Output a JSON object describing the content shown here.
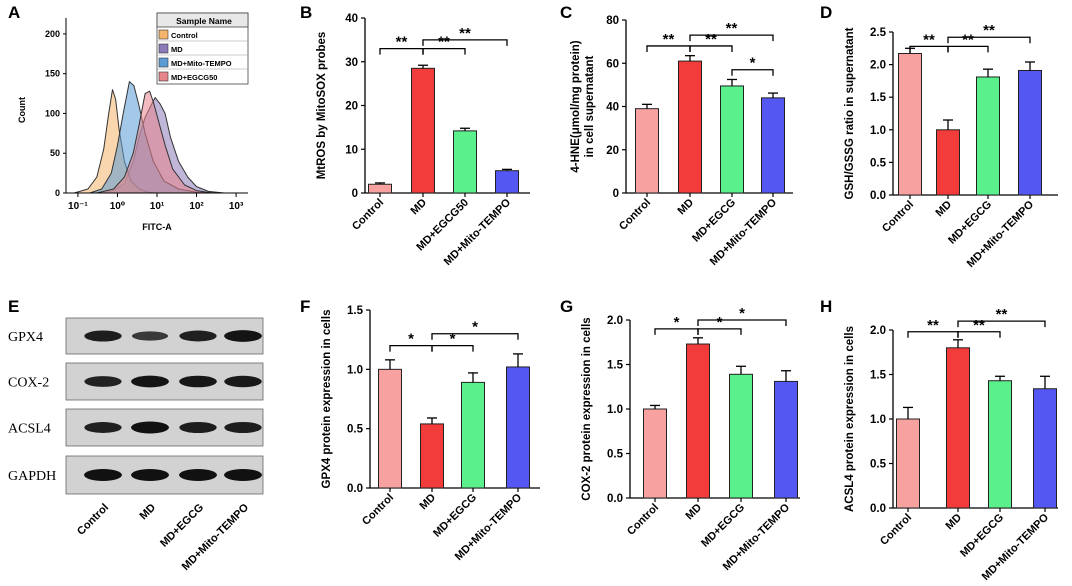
{
  "figure": {
    "panel_letters": [
      "A",
      "B",
      "C",
      "D",
      "E",
      "F",
      "G",
      "H"
    ]
  },
  "chart_data": [
    {
      "panel": "A",
      "type": "area",
      "subtype": "flow-cytometry-histogram",
      "xlabel": "FITC-A",
      "ylabel": "Count",
      "xscale": "log",
      "xlim": [
        0.05,
        2000
      ],
      "ylim": [
        0,
        220
      ],
      "xtick_labels": [
        "10⁻¹",
        "10⁰",
        "10¹",
        "10²",
        "10³"
      ],
      "ytick_labels": [
        "0",
        "50",
        "100",
        "150",
        "200"
      ],
      "yticks": [
        0,
        50,
        100,
        150,
        200
      ],
      "legend_title": "Sample Name",
      "legend_position": "top-right",
      "series": [
        {
          "name": "Control",
          "color": "#f5b46c",
          "x": [
            0.08,
            0.18,
            0.3,
            0.45,
            0.6,
            0.75,
            0.9,
            1.1,
            1.5,
            2.2,
            3.5,
            6,
            10
          ],
          "y": [
            0,
            5,
            20,
            55,
            100,
            130,
            118,
            80,
            40,
            15,
            5,
            1,
            0
          ]
        },
        {
          "name": "MD",
          "color": "#8c7ab8",
          "x": [
            0.4,
            0.8,
            1.5,
            2.5,
            3.5,
            5,
            7,
            9,
            12,
            16,
            22,
            35,
            60,
            100,
            200,
            500
          ],
          "y": [
            0,
            3,
            12,
            40,
            70,
            95,
            110,
            120,
            112,
            100,
            70,
            40,
            20,
            8,
            2,
            0
          ]
        },
        {
          "name": "MD+Mito-TEMPO",
          "color": "#5a9bd4",
          "x": [
            0.2,
            0.4,
            0.7,
            1.0,
            1.4,
            2.0,
            2.6,
            3.5,
            5,
            8,
            15,
            35,
            100,
            300
          ],
          "y": [
            0,
            5,
            25,
            60,
            100,
            140,
            135,
            110,
            75,
            40,
            15,
            5,
            1,
            0
          ]
        },
        {
          "name": "MD+EGCG50",
          "color": "#e8848c",
          "x": [
            0.3,
            0.8,
            1.5,
            2.5,
            3.5,
            5,
            6.5,
            8,
            11,
            16,
            25,
            50,
            100,
            250
          ],
          "y": [
            0,
            5,
            20,
            50,
            85,
            125,
            128,
            115,
            90,
            60,
            30,
            10,
            3,
            0
          ]
        }
      ]
    },
    {
      "panel": "B",
      "type": "bar",
      "ylabel": "MtROS by MitoSOX probes",
      "ylim": [
        0,
        40
      ],
      "yticks": [
        0,
        10,
        20,
        30,
        40
      ],
      "categories": [
        "Control",
        "MD",
        "MD+EGCG50",
        "MD+Mito-TEMPO"
      ],
      "values": [
        2.0,
        28.5,
        14.2,
        5.1
      ],
      "errors": [
        0.3,
        0.7,
        0.6,
        0.3
      ],
      "colors": [
        "#f7a1a1",
        "#f23b3b",
        "#5af08c",
        "#5557f2"
      ],
      "significance": [
        {
          "from": 0,
          "to": 1,
          "label": "**",
          "y": 33
        },
        {
          "from": 1,
          "to": 2,
          "label": "**",
          "y": 33
        },
        {
          "from": 1,
          "to": 3,
          "label": "**",
          "y": 35
        }
      ]
    },
    {
      "panel": "C",
      "type": "bar",
      "ylabel": "4-HNE(μmol/mg protein) in cell supernatant",
      "ylabel_lines": [
        "4-HNE(μmol/mg protein)",
        "in cell supernatant"
      ],
      "ylim": [
        0,
        80
      ],
      "yticks": [
        0,
        20,
        40,
        60,
        80
      ],
      "categories": [
        "Control",
        "MD",
        "MD+EGCG",
        "MD+Mito-TEMPO"
      ],
      "values": [
        39,
        61,
        49.5,
        44
      ],
      "errors": [
        2,
        2.5,
        3,
        2.2
      ],
      "colors": [
        "#f7a1a1",
        "#f23b3b",
        "#5af08c",
        "#5557f2"
      ],
      "significance": [
        {
          "from": 0,
          "to": 1,
          "label": "**",
          "y": 68
        },
        {
          "from": 1,
          "to": 2,
          "label": "**",
          "y": 68
        },
        {
          "from": 1,
          "to": 3,
          "label": "**",
          "y": 73
        },
        {
          "from": 2,
          "to": 3,
          "label": "*",
          "y": 57
        }
      ]
    },
    {
      "panel": "D",
      "type": "bar",
      "ylabel": "GSH/GSSG ratio in supernatant",
      "ylim": [
        0,
        2.5
      ],
      "yticks": [
        0.0,
        0.5,
        1.0,
        1.5,
        2.0,
        2.5
      ],
      "categories": [
        "Control",
        "MD",
        "MD+EGCG",
        "MD+Mito-TEMPO"
      ],
      "values": [
        2.17,
        1.0,
        1.81,
        1.91
      ],
      "errors": [
        0.08,
        0.15,
        0.12,
        0.13
      ],
      "colors": [
        "#f7a1a1",
        "#f23b3b",
        "#5af08c",
        "#5557f2"
      ],
      "significance": [
        {
          "from": 0,
          "to": 1,
          "label": "**",
          "y": 2.28
        },
        {
          "from": 1,
          "to": 2,
          "label": "**",
          "y": 2.28
        },
        {
          "from": 1,
          "to": 3,
          "label": "**",
          "y": 2.42
        }
      ]
    },
    {
      "panel": "E",
      "type": "western-blot",
      "rows": [
        "GPX4",
        "COX-2",
        "ACSL4",
        "GAPDH"
      ],
      "lanes": [
        "Control",
        "MD",
        "MD+EGCG",
        "MD+Mito-TEMPO"
      ],
      "band_intensity": [
        [
          0.85,
          0.55,
          0.82,
          0.95
        ],
        [
          0.8,
          0.95,
          0.92,
          0.9
        ],
        [
          0.82,
          0.98,
          0.85,
          0.85
        ],
        [
          0.98,
          0.98,
          0.98,
          0.98
        ]
      ]
    },
    {
      "panel": "F",
      "type": "bar",
      "ylabel": "GPX4 protein expression in cells",
      "ylim": [
        0,
        1.5
      ],
      "yticks": [
        0.0,
        0.5,
        1.0,
        1.5
      ],
      "categories": [
        "Control",
        "MD",
        "MD+EGCG",
        "MD+Mito-TEMPO"
      ],
      "values": [
        1.0,
        0.54,
        0.89,
        1.02
      ],
      "errors": [
        0.08,
        0.05,
        0.08,
        0.11
      ],
      "colors": [
        "#f7a1a1",
        "#f23b3b",
        "#5af08c",
        "#5557f2"
      ],
      "significance": [
        {
          "from": 0,
          "to": 1,
          "label": "*",
          "y": 1.2
        },
        {
          "from": 1,
          "to": 2,
          "label": "*",
          "y": 1.2
        },
        {
          "from": 1,
          "to": 3,
          "label": "*",
          "y": 1.3
        }
      ]
    },
    {
      "panel": "G",
      "type": "bar",
      "ylabel": "COX-2 protein expression in cells",
      "ylim": [
        0,
        2.0
      ],
      "yticks": [
        0.0,
        0.5,
        1.0,
        1.5,
        2.0
      ],
      "categories": [
        "Control",
        "MD",
        "MD+EGCG",
        "MD+Mito-TEMPO"
      ],
      "values": [
        1.0,
        1.73,
        1.39,
        1.31
      ],
      "errors": [
        0.04,
        0.07,
        0.09,
        0.12
      ],
      "colors": [
        "#f7a1a1",
        "#f23b3b",
        "#5af08c",
        "#5557f2"
      ],
      "significance": [
        {
          "from": 0,
          "to": 1,
          "label": "*",
          "y": 1.9
        },
        {
          "from": 1,
          "to": 2,
          "label": "*",
          "y": 1.9
        },
        {
          "from": 1,
          "to": 3,
          "label": "*",
          "y": 2.0
        }
      ]
    },
    {
      "panel": "H",
      "type": "bar",
      "ylabel": "ACSL4 protein expression in cells",
      "ylim": [
        0,
        2.0
      ],
      "yticks": [
        0.0,
        0.5,
        1.0,
        1.5,
        2.0
      ],
      "categories": [
        "Control",
        "MD",
        "MD+EGCG",
        "MD+Mito-TEMPO"
      ],
      "values": [
        1.0,
        1.8,
        1.43,
        1.34
      ],
      "errors": [
        0.13,
        0.09,
        0.05,
        0.14
      ],
      "colors": [
        "#f7a1a1",
        "#f23b3b",
        "#5af08c",
        "#5557f2"
      ],
      "significance": [
        {
          "from": 0,
          "to": 1,
          "label": "**",
          "y": 1.98
        },
        {
          "from": 1,
          "to": 2,
          "label": "**",
          "y": 1.98
        },
        {
          "from": 1,
          "to": 3,
          "label": "**",
          "y": 2.1
        }
      ]
    }
  ]
}
